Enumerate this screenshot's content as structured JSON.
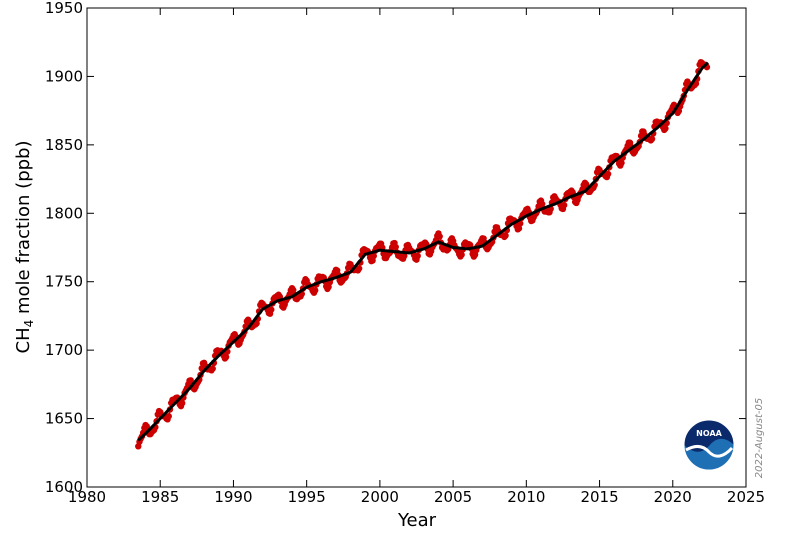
{
  "chart_data": {
    "type": "line",
    "xlabel": "Year",
    "ylabel_main": "CH",
    "ylabel_sub": "4",
    "ylabel_rest": " mole fraction (ppb)",
    "xlim": [
      1980,
      2025
    ],
    "ylim": [
      1600,
      1950
    ],
    "xticks": [
      1980,
      1985,
      1990,
      1995,
      2000,
      2005,
      2010,
      2015,
      2020,
      2025
    ],
    "yticks": [
      1600,
      1650,
      1700,
      1750,
      1800,
      1850,
      1900,
      1950
    ],
    "grid": false,
    "trend_color": "#000000",
    "monthly_color": "#cc0000",
    "seasonal_amplitude_ppb": 5,
    "series": [
      {
        "kind": "trend",
        "x": [
          1983.5,
          1984,
          1985,
          1986,
          1987,
          1988,
          1989,
          1990,
          1991,
          1992,
          1993,
          1994,
          1995,
          1996,
          1997,
          1998,
          1999,
          2000,
          2001,
          2002,
          2003,
          2004,
          2005,
          2006,
          2007,
          2008,
          2009,
          2010,
          2011,
          2012,
          2013,
          2014,
          2015,
          2016,
          2017,
          2018,
          2019,
          2020,
          2021,
          2022,
          2022.4
        ],
        "y": [
          1634,
          1639,
          1650,
          1661,
          1672,
          1685,
          1696,
          1706,
          1716,
          1730,
          1736,
          1739,
          1746,
          1750,
          1753,
          1757,
          1770,
          1773,
          1772,
          1771,
          1774,
          1779,
          1775,
          1774,
          1776,
          1784,
          1792,
          1798,
          1803,
          1807,
          1812,
          1816,
          1827,
          1838,
          1846,
          1854,
          1863,
          1873,
          1890,
          1906,
          1910
        ]
      }
    ]
  },
  "stamp_date": "2022-August-05",
  "logo_text": "NOAA"
}
